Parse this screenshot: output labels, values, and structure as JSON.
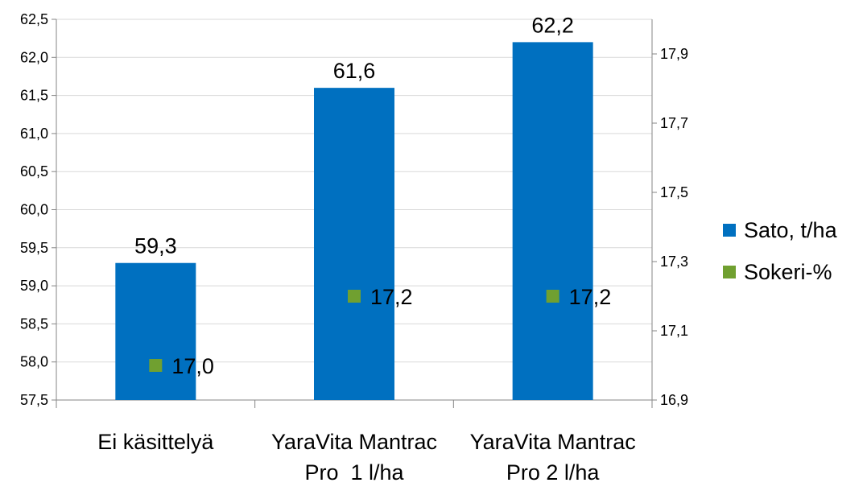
{
  "chart_data": {
    "type": "bar",
    "categories": [
      [
        "Ei käsittelyä"
      ],
      [
        "YaraVita Mantrac",
        "Pro  1 l/ha"
      ],
      [
        "YaraVita Mantrac",
        "Pro 2 l/ha"
      ]
    ],
    "series": [
      {
        "name": "Sato, t/ha",
        "type": "bar",
        "axis": "left",
        "color": "#0070C0",
        "values": [
          59.3,
          61.6,
          62.2
        ],
        "labels": [
          "59,3",
          "61,6",
          "62,2"
        ]
      },
      {
        "name": "Sokeri-%",
        "type": "scatter",
        "axis": "right",
        "color": "#70A030",
        "values": [
          17.0,
          17.2,
          17.2
        ],
        "labels": [
          "17,0",
          "17,2",
          "17,2"
        ]
      }
    ],
    "y_left": {
      "lim": [
        57.5,
        62.5
      ],
      "ticks": [
        "57,5",
        "58,0",
        "58,5",
        "59,0",
        "59,5",
        "60,0",
        "60,5",
        "61,0",
        "61,5",
        "62,0",
        "62,5"
      ]
    },
    "y_right": {
      "lim": [
        16.9,
        18.0
      ],
      "ticks": [
        "16,9",
        "17,1",
        "17,3",
        "17,5",
        "17,7",
        "17,9"
      ]
    },
    "grid": "horizontal",
    "legend_position": "right"
  }
}
